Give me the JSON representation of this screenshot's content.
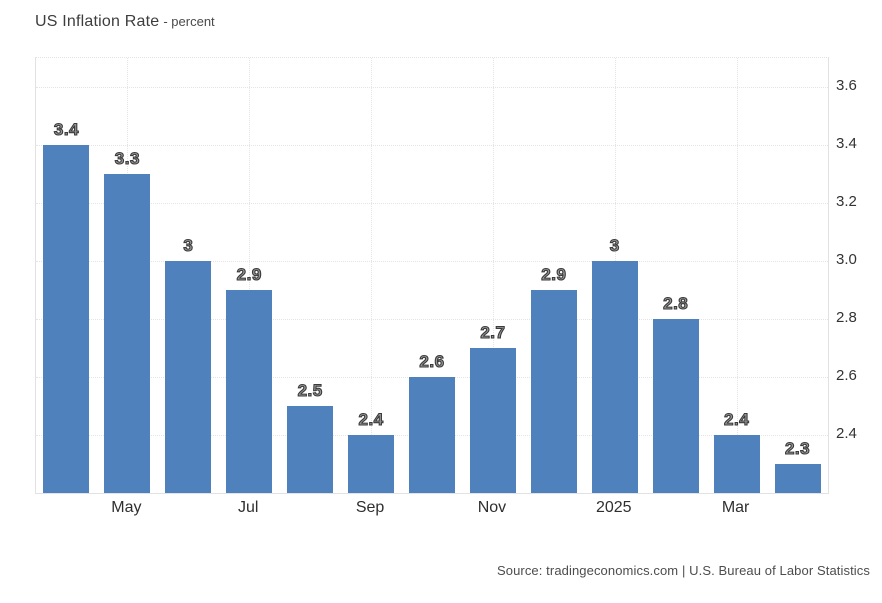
{
  "header": {
    "title": "US Inflation Rate",
    "subtitle": "- percent"
  },
  "footer": {
    "source": "Source: tradingeconomics.com | U.S. Bureau of Labor Statistics"
  },
  "colors": {
    "bar": "#4f82bd",
    "grid": "#e4e4e4",
    "axis_text": "#333333",
    "bar_label_fill": "#979797",
    "bar_label_outline": "#3a3a3a"
  },
  "chart_data": {
    "type": "bar",
    "title": "US Inflation Rate",
    "ylabel": "percent",
    "values": [
      3.4,
      3.3,
      3,
      2.9,
      2.5,
      2.4,
      2.6,
      2.7,
      2.9,
      3,
      2.8,
      2.4,
      2.3
    ],
    "bar_labels": [
      "3.4",
      "3.3",
      "3",
      "2.9",
      "2.5",
      "2.4",
      "2.6",
      "2.7",
      "2.9",
      "3",
      "2.8",
      "2.4",
      "2.3"
    ],
    "x_ticks": [
      {
        "index": 1,
        "label": "May"
      },
      {
        "index": 3,
        "label": "Jul"
      },
      {
        "index": 5,
        "label": "Sep"
      },
      {
        "index": 7,
        "label": "Nov"
      },
      {
        "index": 9,
        "label": "2025"
      },
      {
        "index": 11,
        "label": "Mar"
      }
    ],
    "y_ticks": [
      {
        "value": 2.4,
        "label": "2.4"
      },
      {
        "value": 2.6,
        "label": "2.6"
      },
      {
        "value": 2.8,
        "label": "2.8"
      },
      {
        "value": 3.0,
        "label": "3.0"
      },
      {
        "value": 3.2,
        "label": "3.2"
      },
      {
        "value": 3.4,
        "label": "3.4"
      },
      {
        "value": 3.6,
        "label": "3.6"
      }
    ],
    "ylim": [
      2.2,
      3.7
    ],
    "grid": true,
    "legend": null,
    "y_axis_side": "right"
  }
}
